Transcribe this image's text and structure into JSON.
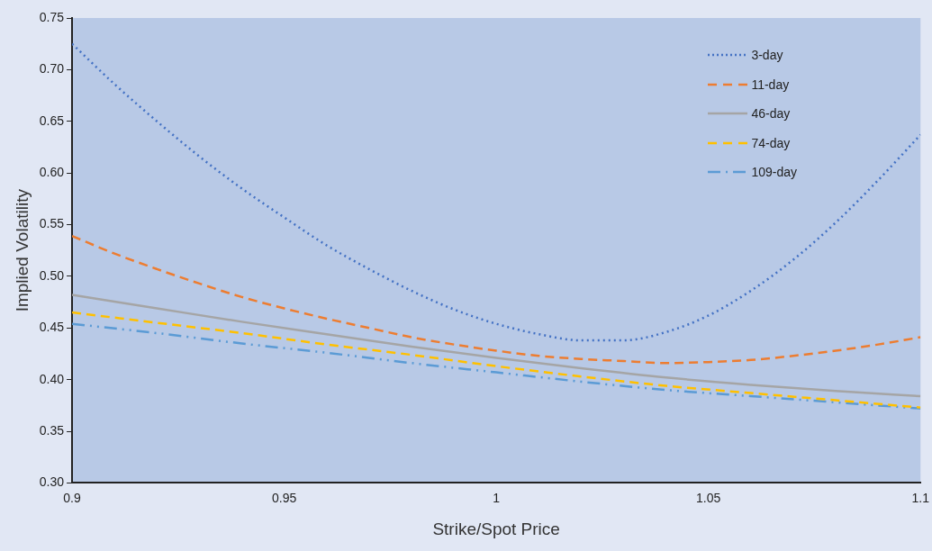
{
  "chart_data": {
    "type": "line",
    "xlabel": "Strike/Spot Price",
    "ylabel": "Implied Volatility",
    "xlim": [
      0.9,
      1.1
    ],
    "xticks": [
      0.9,
      0.95,
      1,
      1.05,
      1.1
    ],
    "ylim": [
      0.3,
      0.75
    ],
    "yticks": [
      {
        "value": 0.3,
        "label": "0.30"
      },
      {
        "value": 0.35,
        "label": "0.35"
      },
      {
        "value": 0.4,
        "label": "0.40"
      },
      {
        "value": 0.45,
        "label": "0.45"
      },
      {
        "value": 0.5,
        "label": "0.50"
      },
      {
        "value": 0.55,
        "label": "0.55"
      },
      {
        "value": 0.6,
        "label": "0.60"
      },
      {
        "value": 0.65,
        "label": "0.65"
      },
      {
        "value": 0.7,
        "label": "0.70"
      },
      {
        "value": 0.75,
        "label": "0.75"
      }
    ],
    "grid": false,
    "legend": "top right",
    "marker": "none",
    "series": [
      {
        "name": "3-day",
        "color": "#4472c4",
        "line_style": "dotted",
        "x": [
          0.9,
          0.91,
          0.92,
          0.93,
          0.94,
          0.95,
          0.96,
          0.97,
          0.98,
          0.99,
          1,
          1.01,
          1.02,
          1.03,
          1.04,
          1.05,
          1.06,
          1.07,
          1.08,
          1.09,
          1.1
        ],
        "values": [
          0.725,
          0.686,
          0.65,
          0.616,
          0.585,
          0.557,
          0.53,
          0.507,
          0.486,
          0.468,
          0.454,
          0.444,
          0.438,
          0.438,
          0.446,
          0.462,
          0.486,
          0.516,
          0.552,
          0.593,
          0.637
        ]
      },
      {
        "name": "11-day",
        "color": "#ed7d31",
        "line_style": "dashed",
        "x": [
          0.9,
          0.91,
          0.92,
          0.93,
          0.94,
          0.95,
          0.96,
          0.97,
          0.98,
          0.99,
          1,
          1.01,
          1.02,
          1.03,
          1.04,
          1.05,
          1.06,
          1.07,
          1.08,
          1.09,
          1.1
        ],
        "values": [
          0.539,
          0.522,
          0.507,
          0.493,
          0.48,
          0.469,
          0.459,
          0.45,
          0.441,
          0.434,
          0.428,
          0.423,
          0.42,
          0.418,
          0.416,
          0.417,
          0.419,
          0.423,
          0.428,
          0.434,
          0.441
        ]
      },
      {
        "name": "46-day",
        "color": "#a5a5a5",
        "line_style": "solid",
        "x": [
          0.9,
          0.92,
          0.94,
          0.96,
          0.98,
          1,
          1.02,
          1.04,
          1.06,
          1.08,
          1.1
        ],
        "values": [
          0.482,
          0.469,
          0.456,
          0.444,
          0.432,
          0.421,
          0.411,
          0.402,
          0.395,
          0.389,
          0.384
        ]
      },
      {
        "name": "74-day",
        "color": "#ffc000",
        "line_style": "dashed",
        "x": [
          0.9,
          0.92,
          0.94,
          0.96,
          0.98,
          1,
          1.02,
          1.04,
          1.06,
          1.08,
          1.1
        ],
        "values": [
          0.465,
          0.455,
          0.445,
          0.434,
          0.424,
          0.413,
          0.403,
          0.394,
          0.387,
          0.38,
          0.373
        ]
      },
      {
        "name": "109-day",
        "color": "#5b9bd5",
        "line_style": "dashdot",
        "x": [
          0.9,
          0.92,
          0.94,
          0.96,
          0.98,
          1,
          1.02,
          1.04,
          1.06,
          1.08,
          1.1
        ],
        "values": [
          0.454,
          0.445,
          0.435,
          0.426,
          0.416,
          0.407,
          0.398,
          0.39,
          0.384,
          0.378,
          0.372
        ]
      }
    ]
  }
}
